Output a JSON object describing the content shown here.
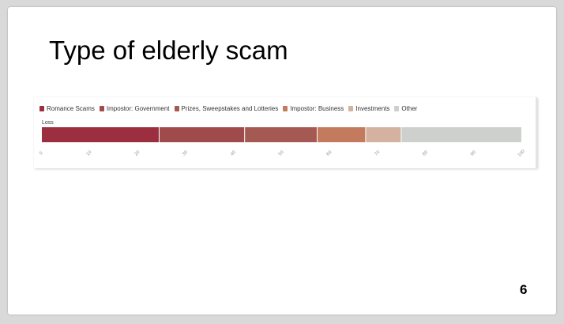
{
  "slide": {
    "title": "Type of elderly scam",
    "page_number": "6"
  },
  "chart_data": {
    "type": "bar",
    "orientation": "horizontal",
    "stacked": true,
    "categories": [
      "Loss"
    ],
    "series": [
      {
        "name": "Romance Scams",
        "values": [
          24.5
        ],
        "color": "#9b2f3f"
      },
      {
        "name": "Impostor: Government",
        "values": [
          17.8
        ],
        "color": "#a04b4b"
      },
      {
        "name": "Prizes, Sweepstakes and Lotteries",
        "values": [
          15.1
        ],
        "color": "#a45a52"
      },
      {
        "name": "Impostor: Business",
        "values": [
          10.1
        ],
        "color": "#c47a5d"
      },
      {
        "name": "Investments",
        "values": [
          7.4
        ],
        "color": "#d3b2a0"
      },
      {
        "name": "Other",
        "values": [
          25.1
        ],
        "color": "#cdd0cc"
      }
    ],
    "xlim": [
      0,
      100
    ],
    "xticks": [
      "0",
      "10",
      "20",
      "30",
      "40",
      "50",
      "60",
      "70",
      "80",
      "90",
      "100"
    ],
    "legend_position": "top-left",
    "grid": false
  }
}
